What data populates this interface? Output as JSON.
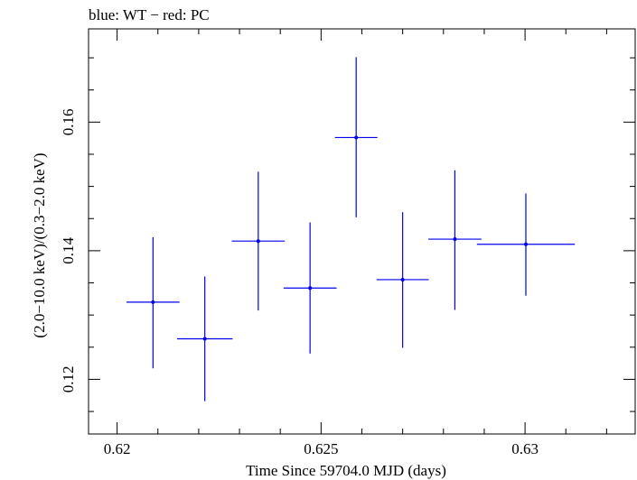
{
  "chart_data": {
    "type": "scatter",
    "title": "blue: WT − red: PC",
    "xlabel": "Time Since 59704.0 MJD (days)",
    "ylabel": "(2.0−10.0 keV)/(0.3−2.0 keV)",
    "xlim": [
      0.6193,
      0.6327
    ],
    "ylim": [
      0.1115,
      0.1745
    ],
    "xticks": [
      0.62,
      0.625,
      0.63
    ],
    "xtick_labels": [
      "0.62",
      "0.625",
      "0.63"
    ],
    "yticks": [
      0.12,
      0.14,
      0.16
    ],
    "ytick_labels": [
      "0.12",
      "0.14",
      "0.16"
    ],
    "grid": false,
    "series": [
      {
        "name": "WT",
        "color": "#0000ee",
        "points": [
          {
            "x": 0.62088,
            "xerr": 0.00065,
            "y": 0.132,
            "yerr_low": 0.0103,
            "yerr_high": 0.0101
          },
          {
            "x": 0.62215,
            "xerr": 0.00068,
            "y": 0.1263,
            "yerr_low": 0.0097,
            "yerr_high": 0.0097
          },
          {
            "x": 0.62346,
            "xerr": 0.00065,
            "y": 0.1415,
            "yerr_low": 0.0108,
            "yerr_high": 0.0108
          },
          {
            "x": 0.62473,
            "xerr": 0.00065,
            "y": 0.1342,
            "yerr_low": 0.0102,
            "yerr_high": 0.0102
          },
          {
            "x": 0.62586,
            "xerr": 0.00052,
            "y": 0.1576,
            "yerr_low": 0.0124,
            "yerr_high": 0.0125
          },
          {
            "x": 0.627,
            "xerr": 0.00064,
            "y": 0.1355,
            "yerr_low": 0.0106,
            "yerr_high": 0.0105
          },
          {
            "x": 0.62828,
            "xerr": 0.00065,
            "y": 0.1418,
            "yerr_low": 0.011,
            "yerr_high": 0.0107
          },
          {
            "x": 0.63002,
            "xerr": 0.0012,
            "y": 0.141,
            "yerr_low": 0.008,
            "yerr_high": 0.0079
          }
        ]
      }
    ]
  }
}
